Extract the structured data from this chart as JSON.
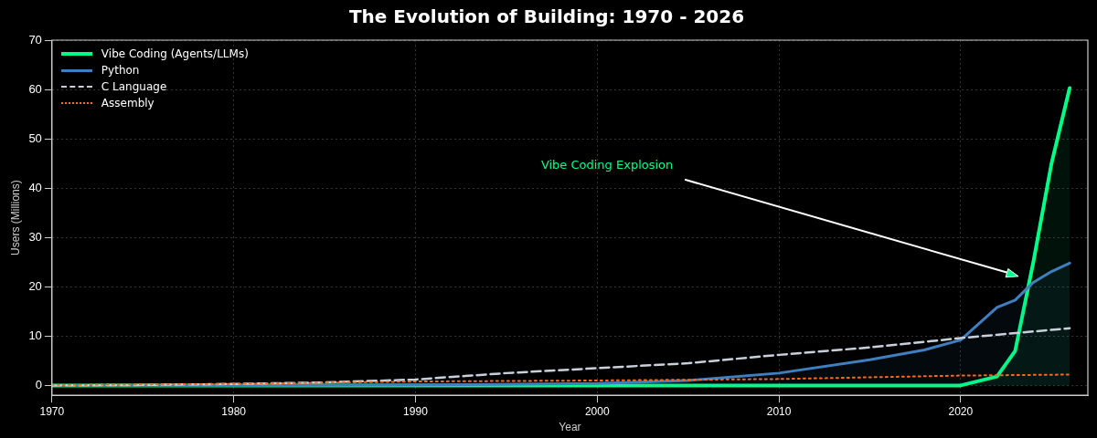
{
  "chart_data": {
    "type": "line",
    "title": "The Evolution of Building: 1970 - 2026",
    "xlabel": "Year",
    "ylabel": "Users (Millions)",
    "xlim": [
      1970,
      2027
    ],
    "xticks": [
      1970,
      1980,
      1990,
      2000,
      2010,
      2020
    ],
    "ylim": [
      -2,
      70
    ],
    "yticks": [
      0,
      10,
      20,
      30,
      40,
      50,
      60,
      70
    ],
    "grid": true,
    "legend": "top left",
    "annotations": [
      "Vibe Coding Explosion"
    ],
    "series": [
      {
        "name": "Vibe Coding (Agents/LLMs)",
        "type": "area",
        "color": "#00ff88",
        "line_style": "solid",
        "x": [
          1970,
          1980,
          1990,
          2000,
          2010,
          2020,
          2022,
          2023,
          2024,
          2025,
          2026
        ],
        "values": [
          0,
          0,
          0,
          0,
          0,
          0,
          1.8,
          7,
          25,
          45,
          60.3
        ]
      },
      {
        "name": "Python",
        "type": "area",
        "color": "#3f7fbf",
        "line_style": "solid",
        "x": [
          1970,
          1980,
          1990,
          2000,
          2005,
          2010,
          2015,
          2018,
          2020,
          2022,
          2023,
          2024,
          2025,
          2026
        ],
        "values": [
          0,
          0,
          0.1,
          0.4,
          1,
          2.5,
          5.2,
          7.2,
          9.2,
          15.8,
          17.3,
          20.9,
          23.1,
          24.8
        ]
      },
      {
        "name": "C Language",
        "color": "#c8d0dc",
        "line_style": "dashed",
        "x": [
          1970,
          1975,
          1980,
          1985,
          1990,
          1995,
          2000,
          2005,
          2010,
          2015,
          2020,
          2026
        ],
        "values": [
          0,
          0.1,
          0.3,
          0.6,
          1.2,
          2.5,
          3.5,
          4.5,
          6.2,
          7.7,
          9.6,
          11.6
        ]
      },
      {
        "name": "Assembly",
        "color": "#ff6a1a",
        "line_style": "dotted",
        "x": [
          1970,
          1980,
          1990,
          2000,
          2010,
          2020,
          2026
        ],
        "values": [
          0.1,
          0.3,
          0.8,
          1,
          1.3,
          2,
          2.2
        ]
      }
    ]
  }
}
